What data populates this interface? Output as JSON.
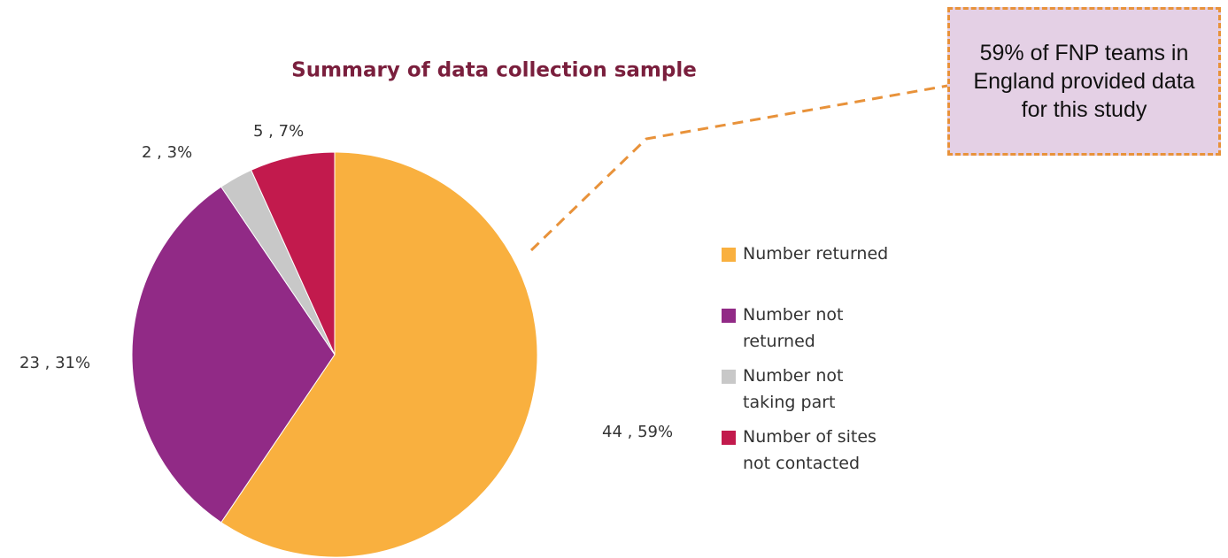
{
  "chart_data": {
    "type": "pie",
    "title": "Summary of data collection sample",
    "categories": [
      "Number returned",
      "Number not returned",
      "Number not taking part",
      "Number of sites not contacted"
    ],
    "values": [
      44,
      23,
      2,
      5
    ],
    "value_labels": [
      "44 , 59%",
      "23 , 31%",
      "2 , 3%",
      "5 , 7%"
    ],
    "colors": [
      "#f9b03f",
      "#912a86",
      "#c8c8c8",
      "#c21a4d"
    ],
    "annotation": "59% of FNP teams in England provided data for this study"
  }
}
